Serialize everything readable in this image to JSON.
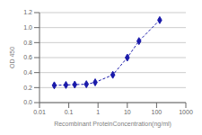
{
  "chart_data": {
    "type": "line",
    "x": [
      0.032,
      0.08,
      0.16,
      0.4,
      0.8,
      3.2,
      10,
      25,
      128
    ],
    "values": [
      0.23,
      0.235,
      0.24,
      0.245,
      0.27,
      0.37,
      0.6,
      0.82,
      1.1
    ],
    "color": "#1a1aaa",
    "marker": "diamond",
    "line_style": "dashed",
    "log": "x",
    "xlim": [
      0.01,
      1000
    ],
    "ylim": [
      0,
      1.2
    ],
    "xticks": [
      0.01,
      0.1,
      1,
      10,
      100,
      1000
    ],
    "yticks": [
      {
        "value": 0,
        "label": "0.0"
      },
      0.2,
      0.4,
      0.6,
      0.8,
      {
        "value": 1.0,
        "label": "1.0"
      },
      1.2
    ],
    "xlabel": "Recombinant ProteinConcentration(ng/ml)",
    "ylabel": "OD 450",
    "grid": true
  }
}
